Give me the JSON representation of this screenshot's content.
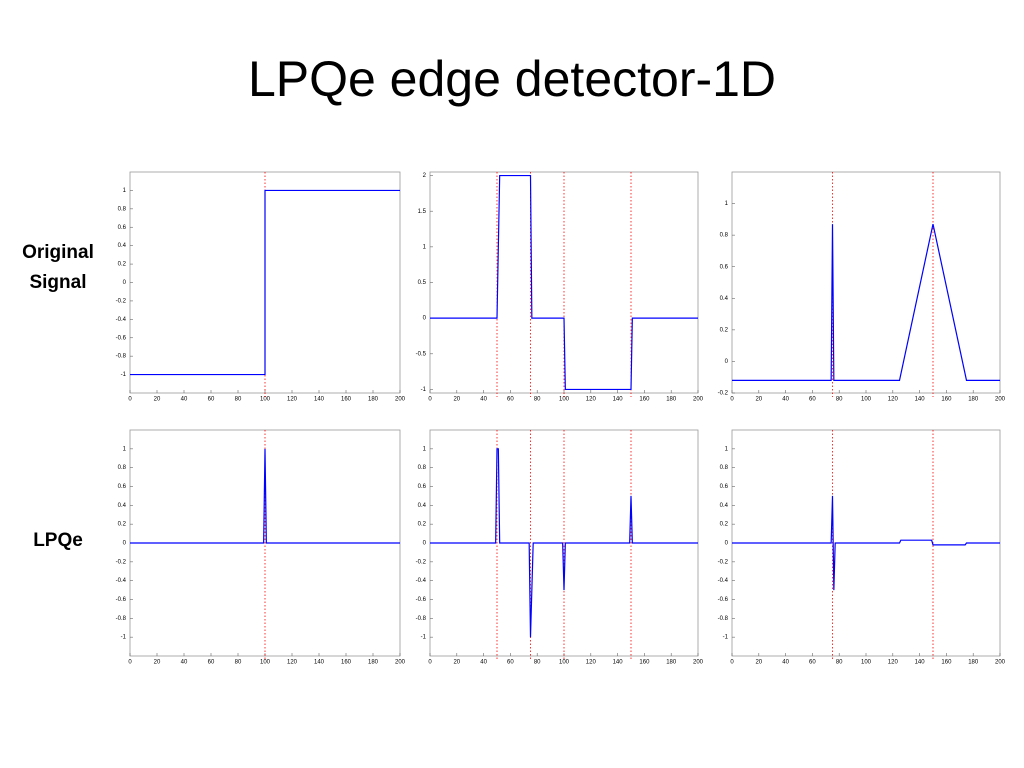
{
  "slide": {
    "title": "LPQe edge detector-1D",
    "row_labels": [
      "Original Signal",
      "LPQe"
    ]
  },
  "chart_data": [
    {
      "type": "line",
      "color": "#0000ff",
      "vline_color": "#ff0000",
      "x": [
        0,
        100,
        100,
        200
      ],
      "values": [
        -1,
        -1,
        1,
        1
      ],
      "vlines": [
        100
      ],
      "xlim": [
        0,
        200
      ],
      "xticks": [
        0,
        20,
        40,
        60,
        80,
        100,
        120,
        140,
        160,
        180,
        200
      ],
      "ylim": [
        -1.2,
        1.2
      ],
      "yticks": [
        -1,
        -0.8,
        -0.6,
        -0.4,
        -0.2,
        0,
        0.2,
        0.4,
        0.6,
        0.8,
        1
      ]
    },
    {
      "type": "line",
      "color": "#0000ff",
      "vline_color": "#ff0000",
      "x": [
        0,
        50,
        52,
        75,
        76,
        100,
        101,
        150,
        151,
        200
      ],
      "values": [
        0,
        0,
        2,
        2,
        0,
        0,
        -1,
        -1,
        0,
        0
      ],
      "vlines": [
        50,
        75,
        100,
        150
      ],
      "xlim": [
        0,
        200
      ],
      "xticks": [
        0,
        20,
        40,
        60,
        80,
        100,
        120,
        140,
        160,
        180,
        200
      ],
      "ylim": [
        -1.05,
        2.05
      ],
      "yticks": [
        -1,
        -0.5,
        0,
        0.5,
        1,
        1.5,
        2
      ]
    },
    {
      "type": "line",
      "color": "#0000ff",
      "vline_color": "#ff0000",
      "x": [
        0,
        74,
        75,
        76,
        125,
        150,
        175,
        200
      ],
      "values": [
        -0.12,
        -0.12,
        0.87,
        -0.12,
        -0.12,
        0.87,
        -0.12,
        -0.12
      ],
      "vlines": [
        75,
        150
      ],
      "xlim": [
        0,
        200
      ],
      "xticks": [
        0,
        20,
        40,
        60,
        80,
        100,
        120,
        140,
        160,
        180,
        200
      ],
      "ylim": [
        -0.2,
        1.2
      ],
      "yticks": [
        -0.2,
        0,
        0.2,
        0.4,
        0.6,
        0.8,
        1
      ]
    },
    {
      "type": "line",
      "color": "#0000ff",
      "vline_color": "#ff0000",
      "x": [
        0,
        99,
        100,
        101,
        200
      ],
      "values": [
        0,
        0,
        1,
        0,
        0
      ],
      "vlines": [
        100
      ],
      "xlim": [
        0,
        200
      ],
      "xticks": [
        0,
        20,
        40,
        60,
        80,
        100,
        120,
        140,
        160,
        180,
        200
      ],
      "ylim": [
        -1.2,
        1.2
      ],
      "yticks": [
        -1,
        -0.8,
        -0.6,
        -0.4,
        -0.2,
        0,
        0.2,
        0.4,
        0.6,
        0.8,
        1
      ]
    },
    {
      "type": "line",
      "color": "#0000ff",
      "vline_color": "#ff0000",
      "x": [
        0,
        49,
        50,
        51,
        52,
        74,
        75,
        77,
        99,
        100,
        101,
        149,
        150,
        151,
        200
      ],
      "values": [
        0,
        0,
        1,
        1,
        0,
        0,
        -1,
        0,
        0,
        -0.5,
        0,
        0,
        0.5,
        0,
        0
      ],
      "vlines": [
        50,
        75,
        100,
        150
      ],
      "xlim": [
        0,
        200
      ],
      "xticks": [
        0,
        20,
        40,
        60,
        80,
        100,
        120,
        140,
        160,
        180,
        200
      ],
      "ylim": [
        -1.2,
        1.2
      ],
      "yticks": [
        -1,
        -0.8,
        -0.6,
        -0.4,
        -0.2,
        0,
        0.2,
        0.4,
        0.6,
        0.8,
        1
      ]
    },
    {
      "type": "line",
      "color": "#0000ff",
      "vline_color": "#ff0000",
      "x": [
        0,
        74,
        75,
        76,
        77,
        125,
        126,
        149,
        150,
        151,
        174,
        175,
        200
      ],
      "values": [
        0,
        0,
        0.5,
        -0.5,
        0,
        0,
        0.03,
        0.03,
        -0.02,
        -0.02,
        -0.02,
        0,
        0
      ],
      "vlines": [
        75,
        150
      ],
      "xlim": [
        0,
        200
      ],
      "xticks": [
        0,
        20,
        40,
        60,
        80,
        100,
        120,
        140,
        160,
        180,
        200
      ],
      "ylim": [
        -1.2,
        1.2
      ],
      "yticks": [
        -1,
        -0.8,
        -0.6,
        -0.4,
        -0.2,
        0,
        0.2,
        0.4,
        0.6,
        0.8,
        1
      ]
    }
  ]
}
